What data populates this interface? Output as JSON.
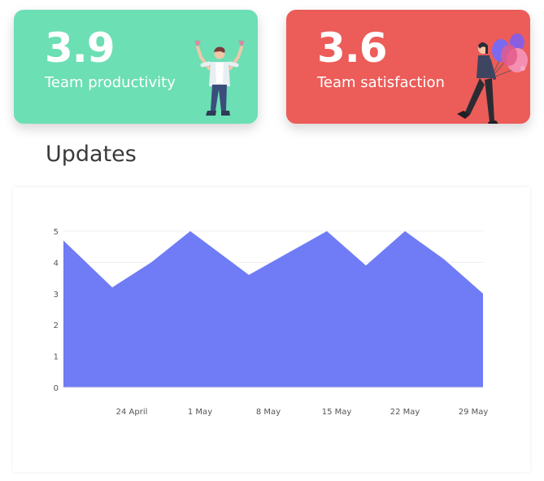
{
  "stats": {
    "productivity": {
      "value": "3.9",
      "label": "Team productivity",
      "color": "#6cdfb4"
    },
    "satisfaction": {
      "value": "3.6",
      "label": "Team satisfaction",
      "color": "#ec5c58"
    }
  },
  "updates": {
    "title": "Updates"
  },
  "chart_data": {
    "type": "area",
    "title": "Updates",
    "xlabel": "",
    "ylabel": "",
    "ylim": [
      0,
      5
    ],
    "y_ticks": [
      0,
      1,
      2,
      3,
      4,
      5
    ],
    "x_tick_labels": [
      "24 April",
      "1 May",
      "8 May",
      "15 May",
      "22 May",
      "29 May"
    ],
    "x_tick_days": [
      7,
      14,
      21,
      28,
      35,
      42
    ],
    "x_domain": [
      0,
      43
    ],
    "series": [
      {
        "name": "Updates",
        "color": "#6f7cf5",
        "x": [
          0,
          5,
          9,
          13,
          19,
          23,
          27,
          31,
          35,
          39,
          43
        ],
        "values": [
          4.7,
          3.2,
          4.0,
          5.0,
          3.6,
          4.3,
          5.0,
          3.9,
          5.0,
          4.1,
          3.0
        ]
      }
    ]
  }
}
